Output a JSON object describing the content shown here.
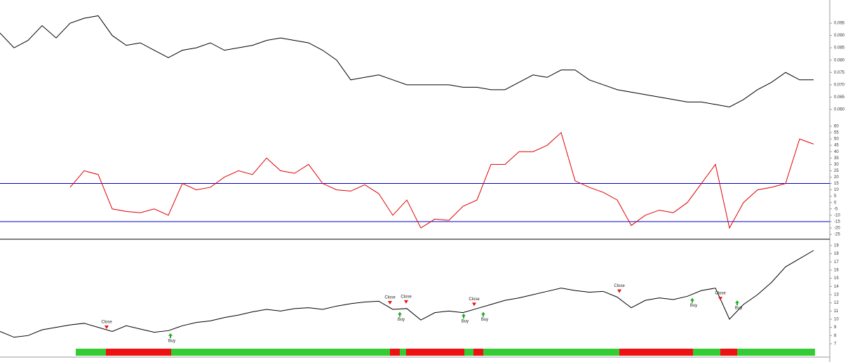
{
  "chart_data": [
    {
      "type": "line",
      "color": "#000000",
      "values": [
        0.091,
        0.085,
        0.088,
        0.094,
        0.089,
        0.095,
        0.097,
        0.098,
        0.09,
        0.086,
        0.087,
        0.084,
        0.081,
        0.084,
        0.085,
        0.087,
        0.084,
        0.085,
        0.086,
        0.088,
        0.089,
        0.088,
        0.087,
        0.084,
        0.08,
        0.072,
        0.073,
        0.074,
        0.072,
        0.07,
        0.07,
        0.07,
        0.07,
        0.069,
        0.069,
        0.068,
        0.068,
        0.071,
        0.074,
        0.073,
        0.076,
        0.076,
        0.072,
        0.07,
        0.068,
        0.067,
        0.066,
        0.065,
        0.064,
        0.063,
        0.063,
        0.062,
        0.061,
        0.064,
        0.068,
        0.071,
        0.075,
        0.072,
        0.072
      ],
      "ylim": [
        0.056,
        0.1044
      ],
      "yticks": [
        {
          "value": 0.06,
          "label": "0.060"
        },
        0.065,
        {
          "value": 0.07,
          "label": "0.070"
        },
        0.075,
        {
          "value": 0.08,
          "label": "0.080"
        },
        0.085,
        {
          "value": 0.09,
          "label": "0.090"
        },
        0.095
      ]
    },
    {
      "type": "line",
      "color": "#e00000",
      "values": [
        null,
        null,
        null,
        null,
        null,
        12,
        25,
        22,
        -5,
        -7,
        -8,
        -5,
        -10,
        15,
        10,
        12,
        20,
        25,
        22,
        35,
        25,
        23,
        30,
        15,
        10,
        9,
        14,
        7,
        -10,
        2,
        -20,
        -13,
        -14,
        -3,
        2,
        30,
        30,
        40,
        40,
        45,
        55,
        17,
        12,
        8,
        2,
        -18,
        -10,
        -6,
        -8,
        0,
        15,
        30,
        -20,
        0,
        10,
        12,
        15,
        50,
        46
      ],
      "ylim": [
        -28.3,
        64.4
      ],
      "yticks": [
        -25,
        -20,
        -15,
        -10,
        -5,
        0,
        5,
        10,
        15,
        20,
        25,
        30,
        35,
        40,
        45,
        50,
        55,
        60
      ],
      "hlines": [
        15,
        -15
      ],
      "hline_color": "#0000cc"
    },
    {
      "type": "line",
      "color": "#000000",
      "values": [
        8.5,
        7.8,
        8.0,
        8.7,
        9.0,
        9.3,
        9.5,
        9.0,
        8.5,
        9.2,
        8.8,
        8.4,
        8.6,
        9.2,
        9.6,
        9.8,
        10.2,
        10.5,
        10.9,
        11.2,
        11.0,
        11.3,
        11.4,
        11.2,
        11.6,
        11.9,
        12.1,
        12.2,
        11.2,
        11.3,
        9.9,
        10.8,
        11.0,
        10.8,
        11.3,
        11.8,
        12.3,
        12.6,
        13.0,
        13.4,
        13.8,
        13.5,
        13.3,
        13.4,
        12.7,
        11.4,
        12.3,
        12.6,
        12.4,
        12.8,
        13.5,
        13.8,
        10.0,
        11.8,
        13.0,
        14.5,
        16.4,
        17.4,
        18.4
      ],
      "ylim": [
        6.57,
        19.6
      ],
      "yticks": [
        7,
        8,
        9,
        10,
        11,
        12,
        13,
        14,
        15,
        16,
        17,
        18,
        19
      ],
      "annotations": [
        {
          "x": 7.6,
          "y": 8.8,
          "label": "Close"
        },
        {
          "x": 12.15,
          "y": 8.3,
          "label": "Buy"
        },
        {
          "x": 27.8,
          "y": 11.8,
          "label": "Close"
        },
        {
          "x": 28.5,
          "y": 10.9,
          "label": "Buy"
        },
        {
          "x": 28.95,
          "y": 11.9,
          "label": "Close"
        },
        {
          "x": 33.05,
          "y": 10.7,
          "label": "Buy"
        },
        {
          "x": 33.8,
          "y": 11.6,
          "label": "Close"
        },
        {
          "x": 34.45,
          "y": 10.9,
          "label": "Buy"
        },
        {
          "x": 44.15,
          "y": 13.2,
          "label": "Close"
        },
        {
          "x": 49.35,
          "y": 12.6,
          "label": "Buy"
        },
        {
          "x": 51.35,
          "y": 12.3,
          "label": "Close"
        },
        {
          "x": 52.55,
          "y": 12.3,
          "label": "Buy"
        }
      ],
      "signal_band": [
        {
          "from": 5.4,
          "to": 7.55,
          "color": "#33cc33"
        },
        {
          "from": 7.55,
          "to": 12.2,
          "color": "#ee1111"
        },
        {
          "from": 12.2,
          "to": 27.8,
          "color": "#33cc33"
        },
        {
          "from": 27.8,
          "to": 28.5,
          "color": "#ee1111"
        },
        {
          "from": 28.5,
          "to": 28.95,
          "color": "#33cc33"
        },
        {
          "from": 28.95,
          "to": 33.1,
          "color": "#ee1111"
        },
        {
          "from": 33.1,
          "to": 33.75,
          "color": "#33cc33"
        },
        {
          "from": 33.75,
          "to": 34.45,
          "color": "#ee1111"
        },
        {
          "from": 34.45,
          "to": 44.15,
          "color": "#33cc33"
        },
        {
          "from": 44.15,
          "to": 49.4,
          "color": "#ee1111"
        },
        {
          "from": 49.4,
          "to": 51.35,
          "color": "#33cc33"
        },
        {
          "from": 51.35,
          "to": 52.55,
          "color": "#ee1111"
        },
        {
          "from": 52.55,
          "to": 58.1,
          "color": "#33cc33"
        }
      ]
    }
  ]
}
